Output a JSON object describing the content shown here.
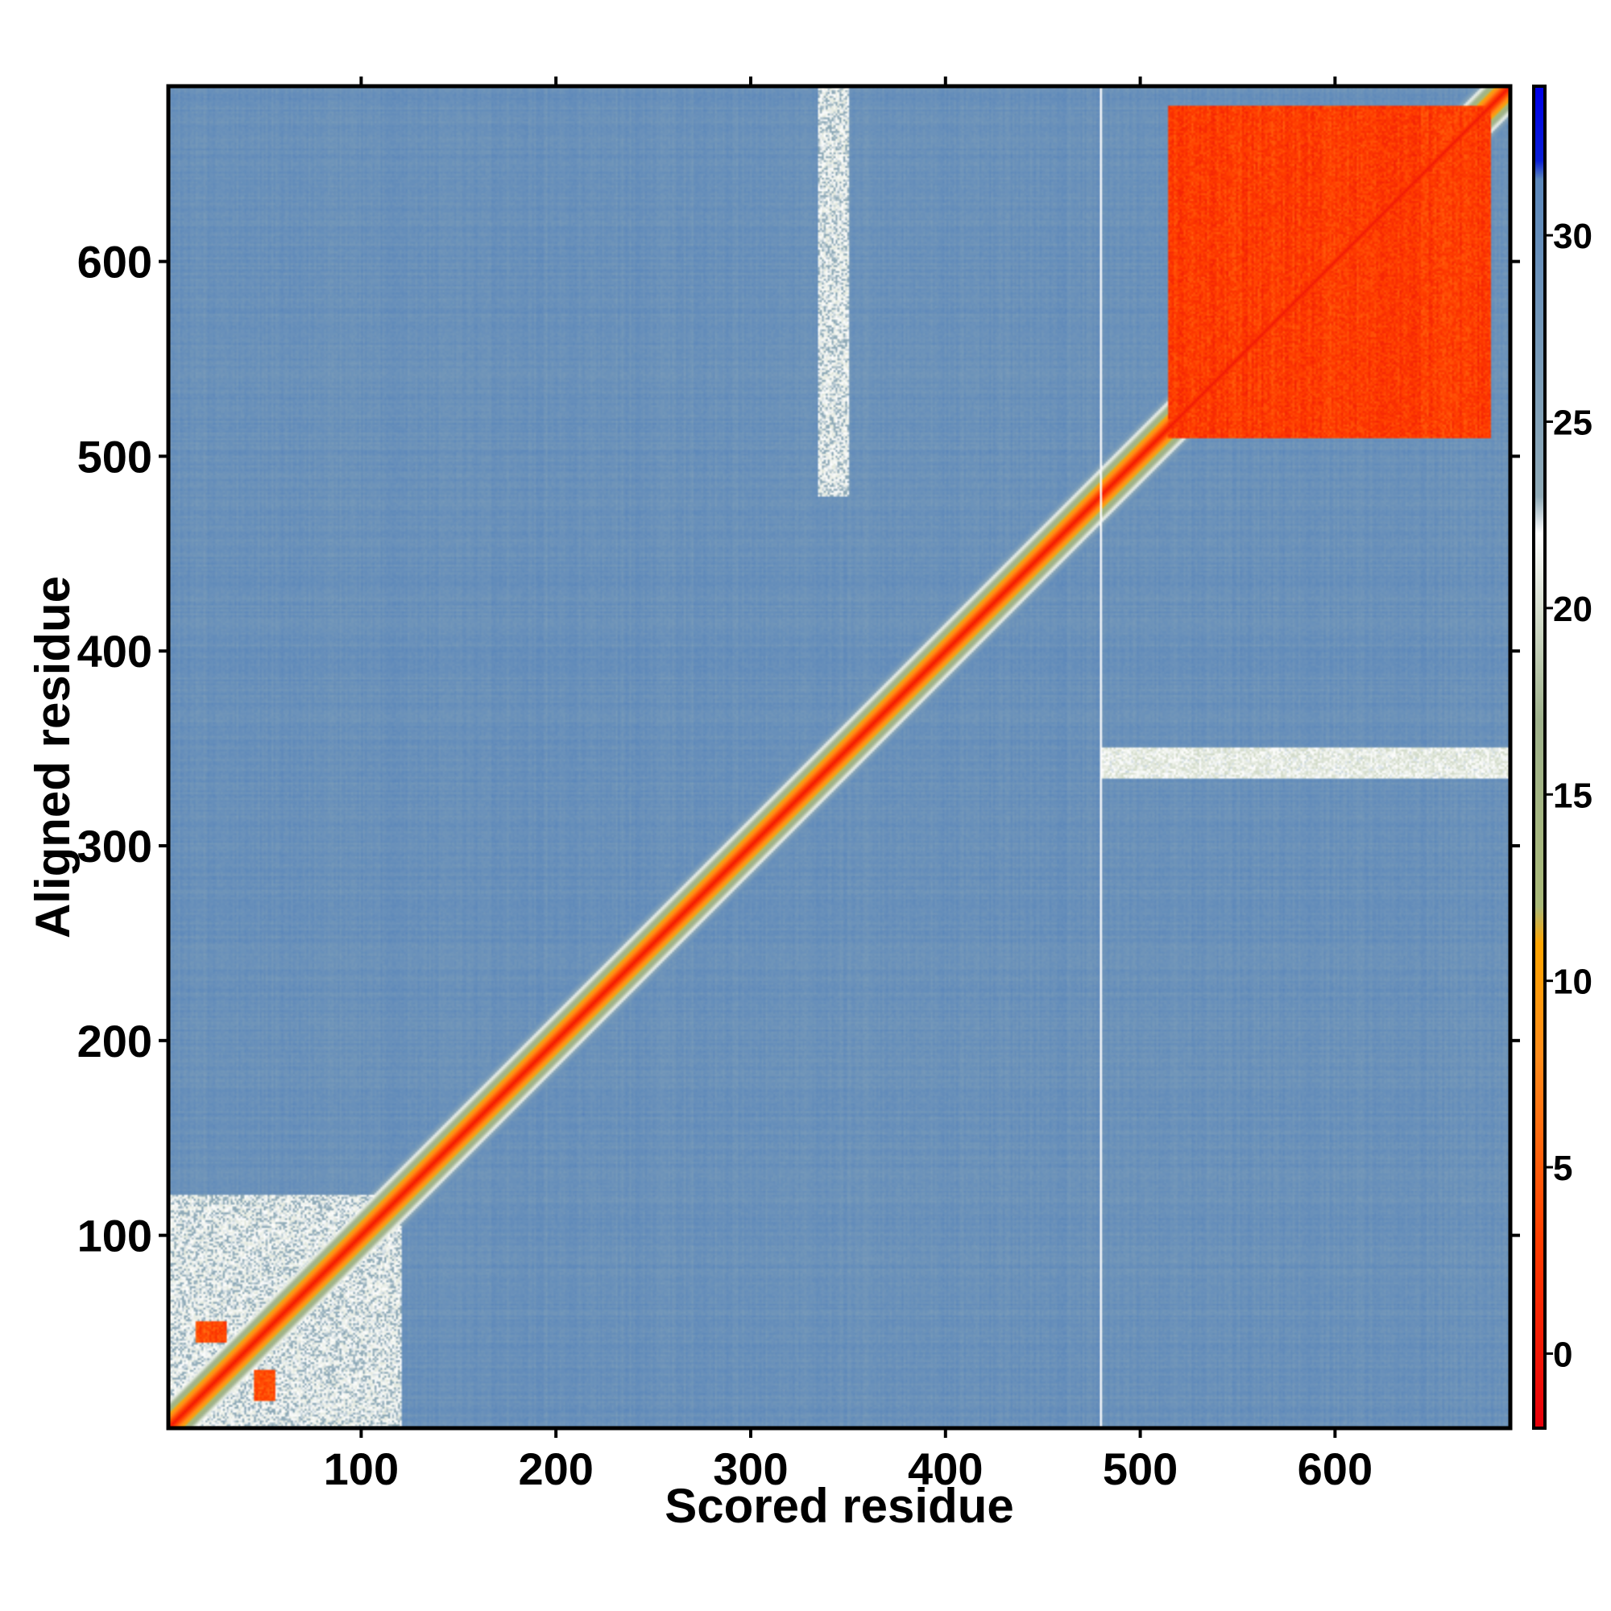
{
  "chart_data": {
    "type": "heatmap",
    "title": "",
    "xlabel": "Scored residue",
    "ylabel": "Aligned residue",
    "n_residues": 690,
    "xlim": [
      1,
      690
    ],
    "ylim": [
      1,
      690
    ],
    "x_ticks": [
      100,
      200,
      300,
      400,
      500,
      600
    ],
    "y_ticks": [
      100,
      200,
      300,
      400,
      500,
      600
    ],
    "colorbar": {
      "range": [
        -2,
        34
      ],
      "ticks": [
        0,
        5,
        10,
        15,
        20,
        25,
        30
      ],
      "stops": [
        {
          "value": -2,
          "color": "#e8000b"
        },
        {
          "value": 3,
          "color": "#ff3d00"
        },
        {
          "value": 8,
          "color": "#ff8c1a"
        },
        {
          "value": 11,
          "color": "#ffa500"
        },
        {
          "value": 12,
          "color": "#a9b978"
        },
        {
          "value": 17,
          "color": "#9fb28c"
        },
        {
          "value": 22,
          "color": "#ffffff"
        },
        {
          "value": 23,
          "color": "#8faab7"
        },
        {
          "value": 31.5,
          "color": "#5b87bb"
        },
        {
          "value": 32,
          "color": "#0a1fd6"
        },
        {
          "value": 34,
          "color": "#0000e8"
        }
      ]
    },
    "background_value": 29,
    "diagonal_value": 0,
    "regions": [
      {
        "name": "C-terminal domain block",
        "x": [
          515,
          680
        ],
        "y": [
          510,
          680
        ],
        "value": 2
      },
      {
        "name": "N-terminal contact spot",
        "x": [
          15,
          30
        ],
        "y": [
          45,
          55
        ],
        "value": 3
      },
      {
        "name": "N-terminal contact spot",
        "x": [
          45,
          55
        ],
        "y": [
          15,
          30
        ],
        "value": 3
      },
      {
        "name": "N-terminal faint block",
        "x": [
          1,
          120
        ],
        "y": [
          1,
          120
        ],
        "value": 22
      },
      {
        "name": "horizontal band",
        "x": [
          480,
          690
        ],
        "y": [
          335,
          350
        ],
        "value": 21
      },
      {
        "name": "vertical band",
        "x": [
          335,
          350
        ],
        "y": [
          480,
          690
        ],
        "value": 22
      }
    ],
    "gap_column": 480
  }
}
